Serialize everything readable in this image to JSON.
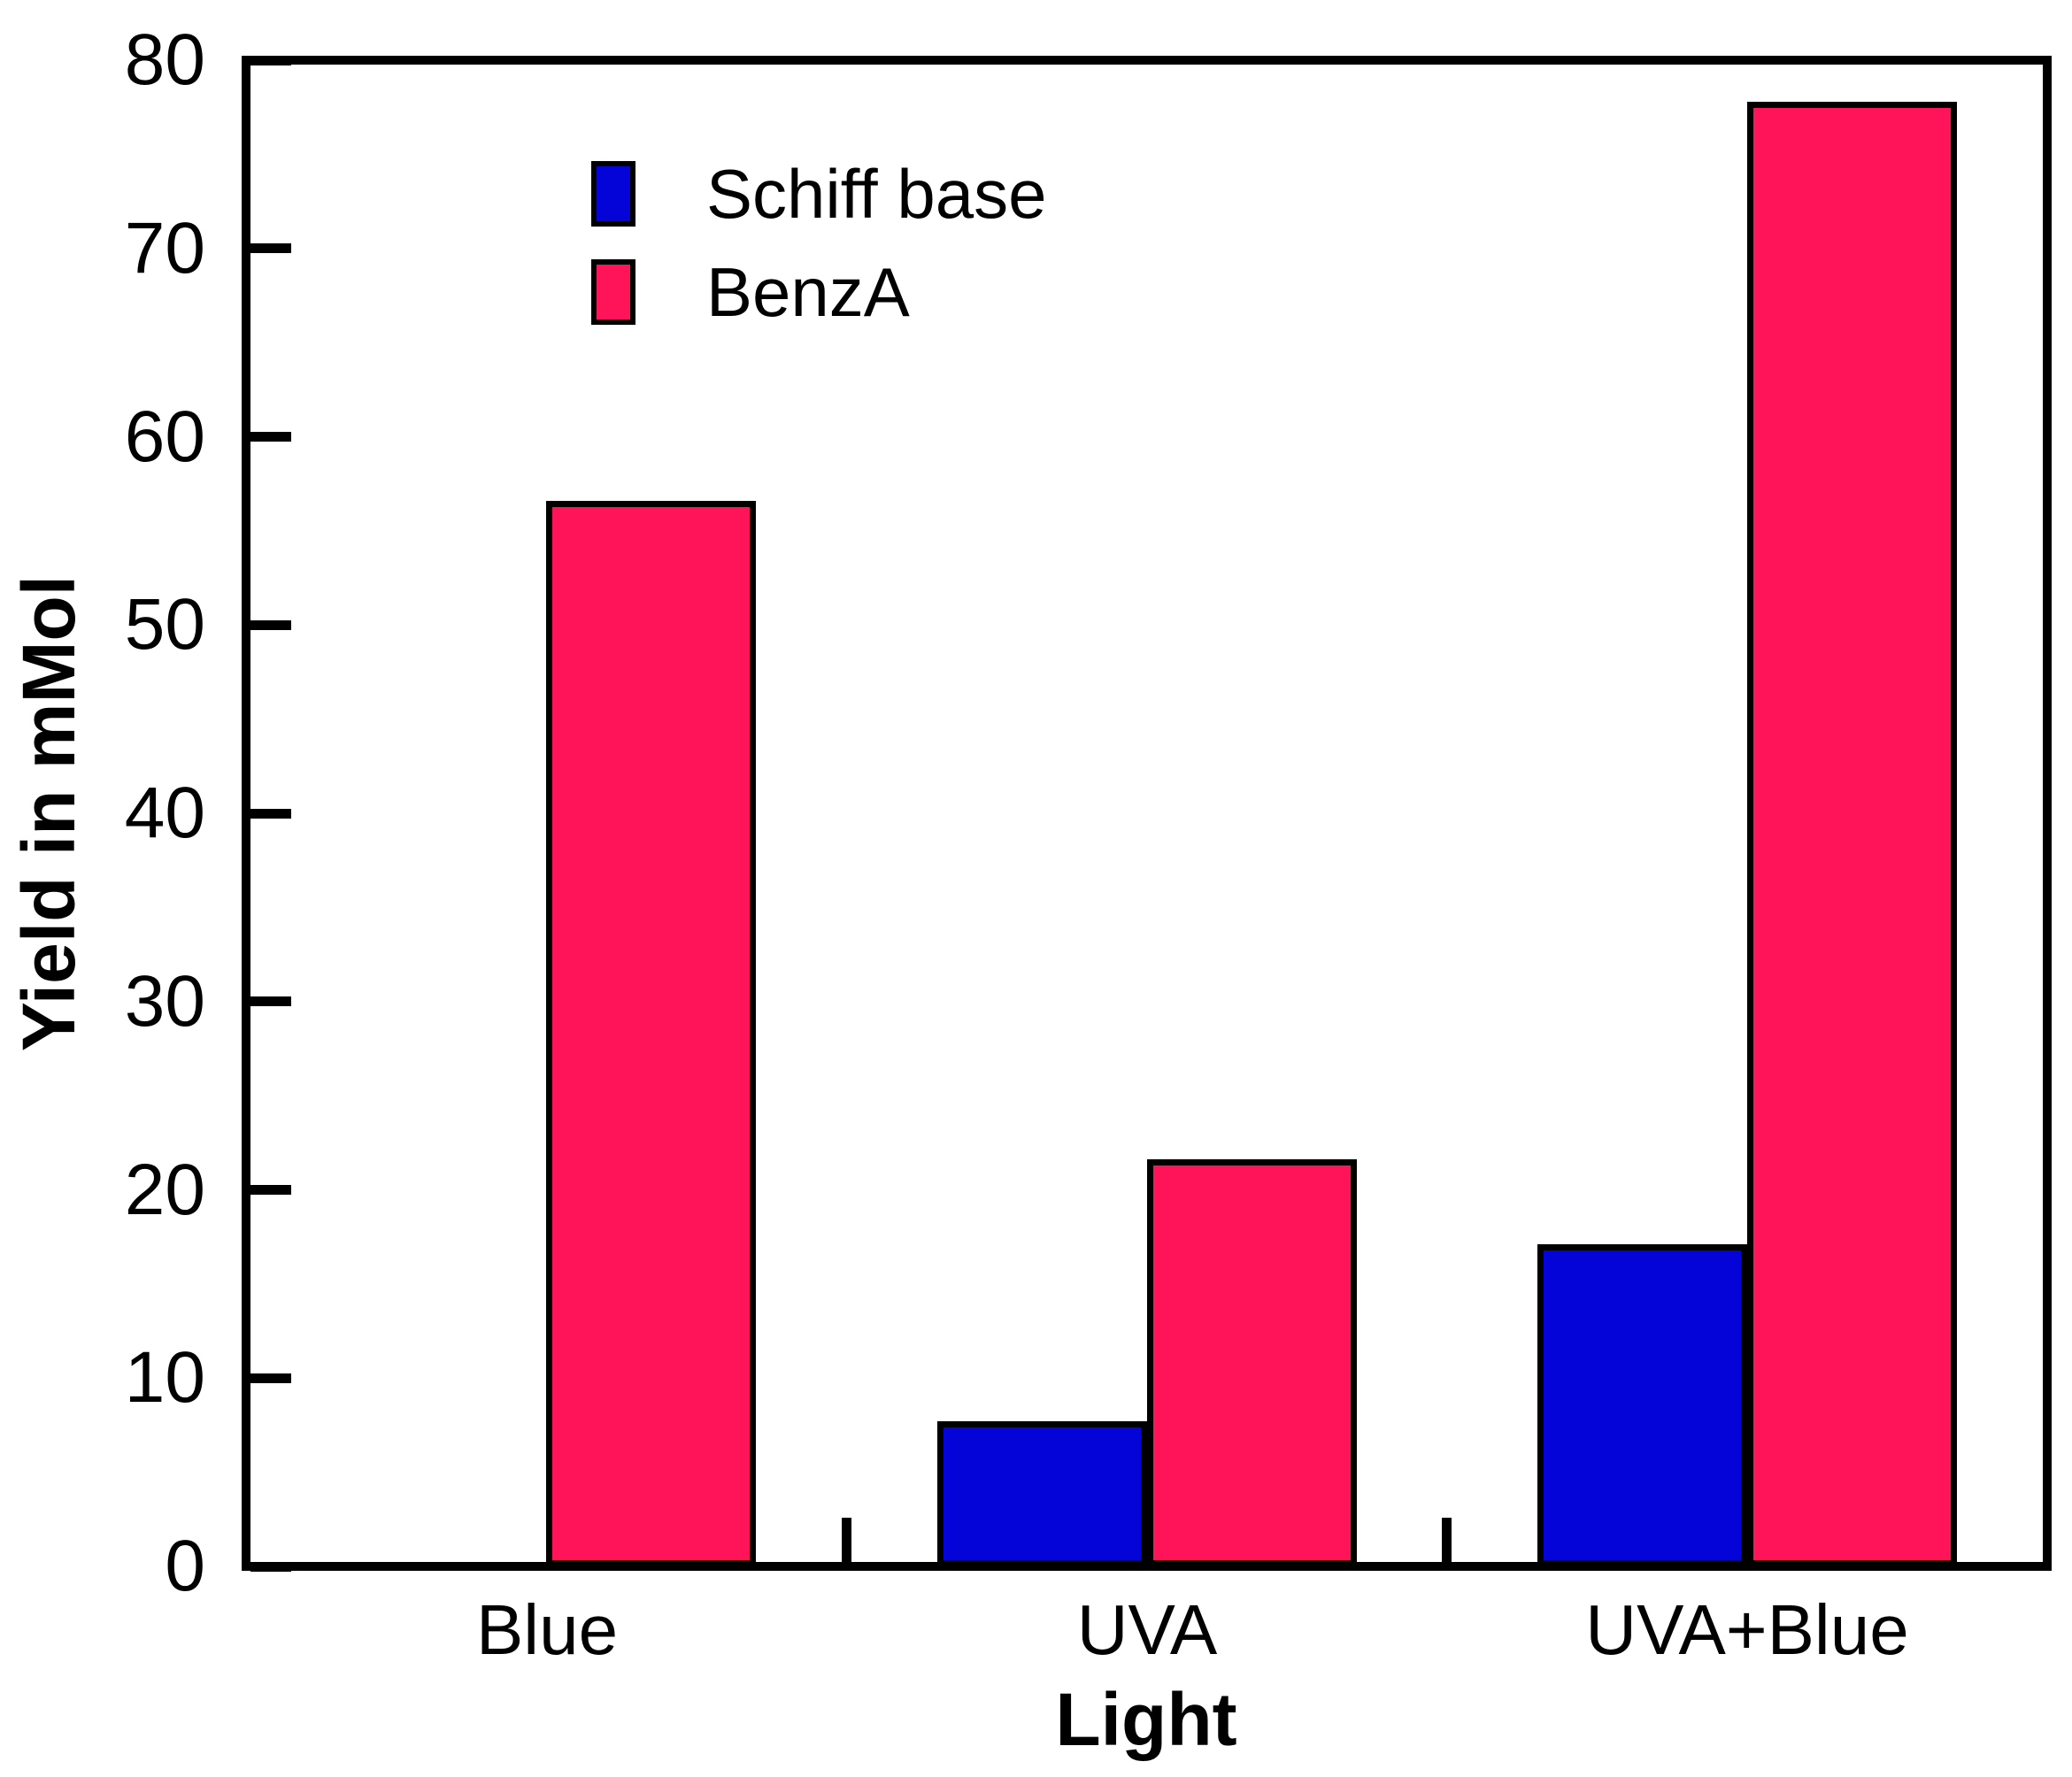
{
  "chart_data": {
    "type": "bar",
    "title": "",
    "xlabel": "Light",
    "ylabel": "Yield in mMol",
    "categories": [
      "Blue",
      "UVA",
      "UVA+Blue"
    ],
    "series": [
      {
        "name": "Schiff base",
        "color": "#0404D8",
        "values": [
          0,
          7.7,
          17.1
        ]
      },
      {
        "name": "BenzA",
        "color": "#FF1459",
        "values": [
          56.6,
          21.6,
          77.8
        ]
      }
    ],
    "ylim": [
      0,
      80
    ],
    "yticks": [
      0,
      10,
      20,
      30,
      40,
      50,
      60,
      70,
      80
    ],
    "grid": false,
    "legend_position": "top-left-inside",
    "axis_color": "#000000",
    "background": "#FFFFFF"
  }
}
